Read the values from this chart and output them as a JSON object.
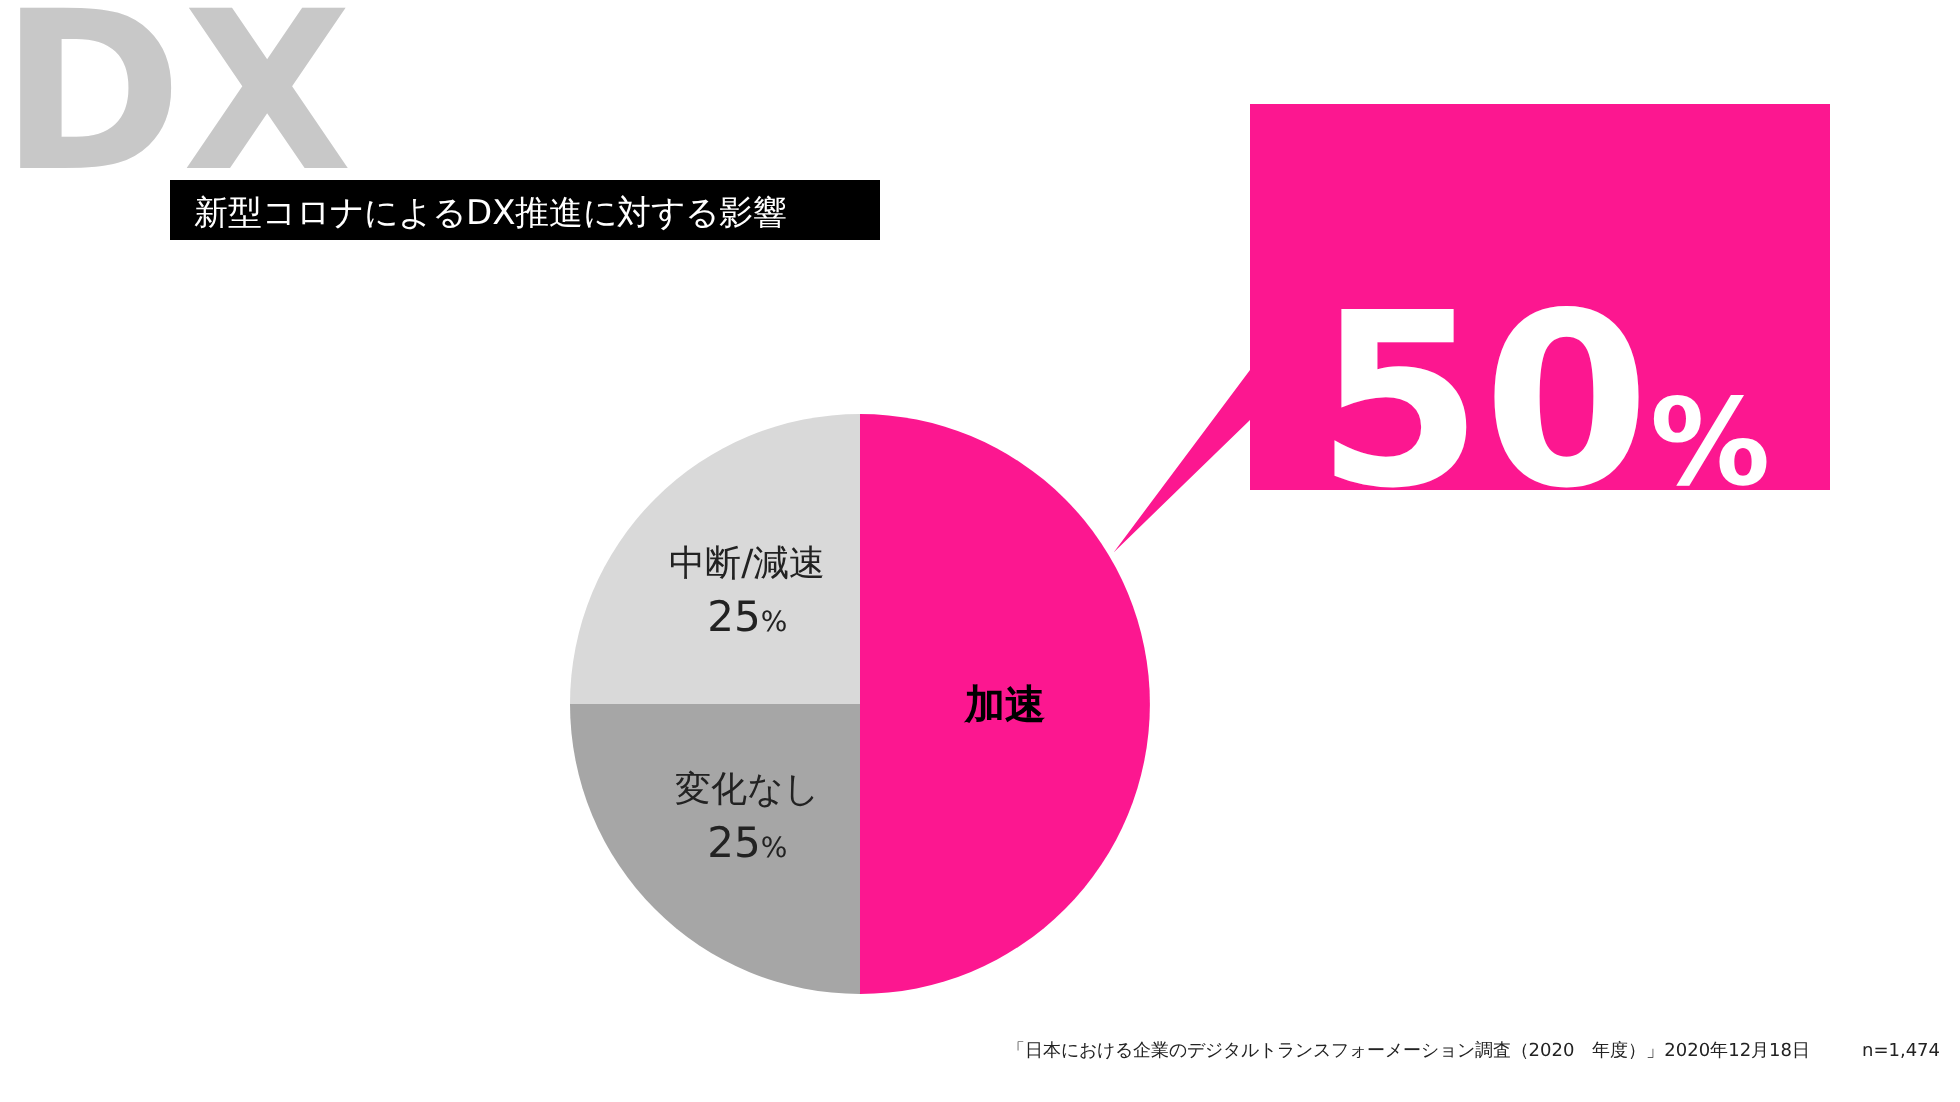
{
  "chart_data": {
    "type": "pie",
    "title": "新型コロナによるDX推進に対する影響",
    "categories": [
      "加速",
      "変化なし",
      "中断/減速"
    ],
    "values": [
      50,
      25,
      25
    ],
    "colors": [
      "#fc1790",
      "#a6a6a6",
      "#d9d9d9"
    ],
    "value_labels": [
      "50%",
      "25%",
      "25%"
    ],
    "annotations": [
      "DX",
      "「日本における企業のデジタルトランスフォーメーション調査（2020　年度）」2020年12月18日",
      "n=1,474"
    ]
  }
}
